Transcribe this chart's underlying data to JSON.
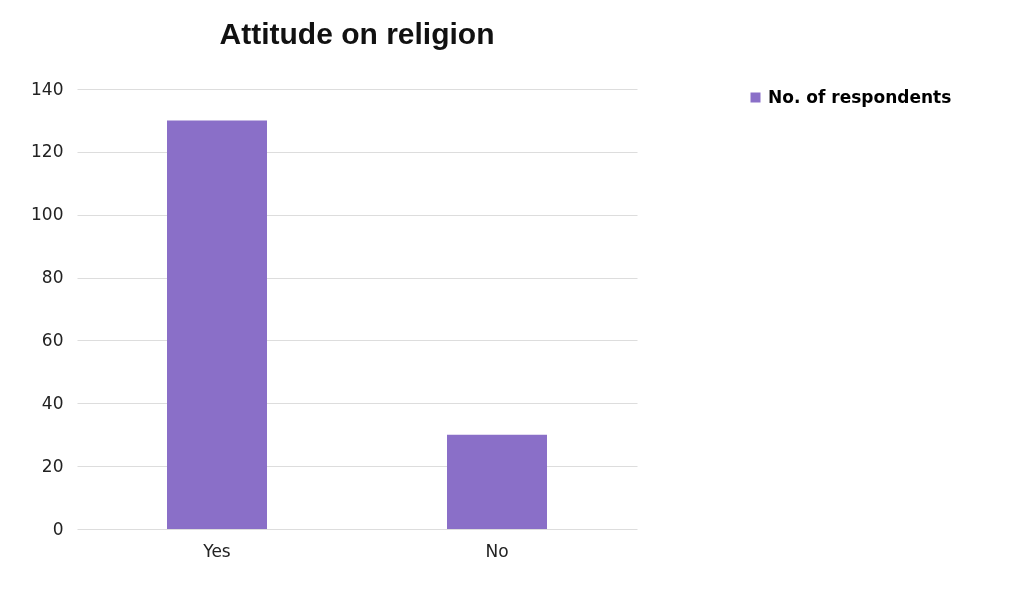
{
  "chart_data": {
    "type": "bar",
    "title": "Attitude on religion",
    "categories": [
      "Yes",
      "No"
    ],
    "series": [
      {
        "name": "No. of respondents",
        "color": "#8a6fc8",
        "values": [
          130,
          30
        ]
      }
    ],
    "ylim": [
      0,
      140
    ],
    "yticks": [
      0,
      20,
      40,
      60,
      80,
      100,
      120,
      140
    ],
    "grid": "y",
    "legend": "right"
  }
}
